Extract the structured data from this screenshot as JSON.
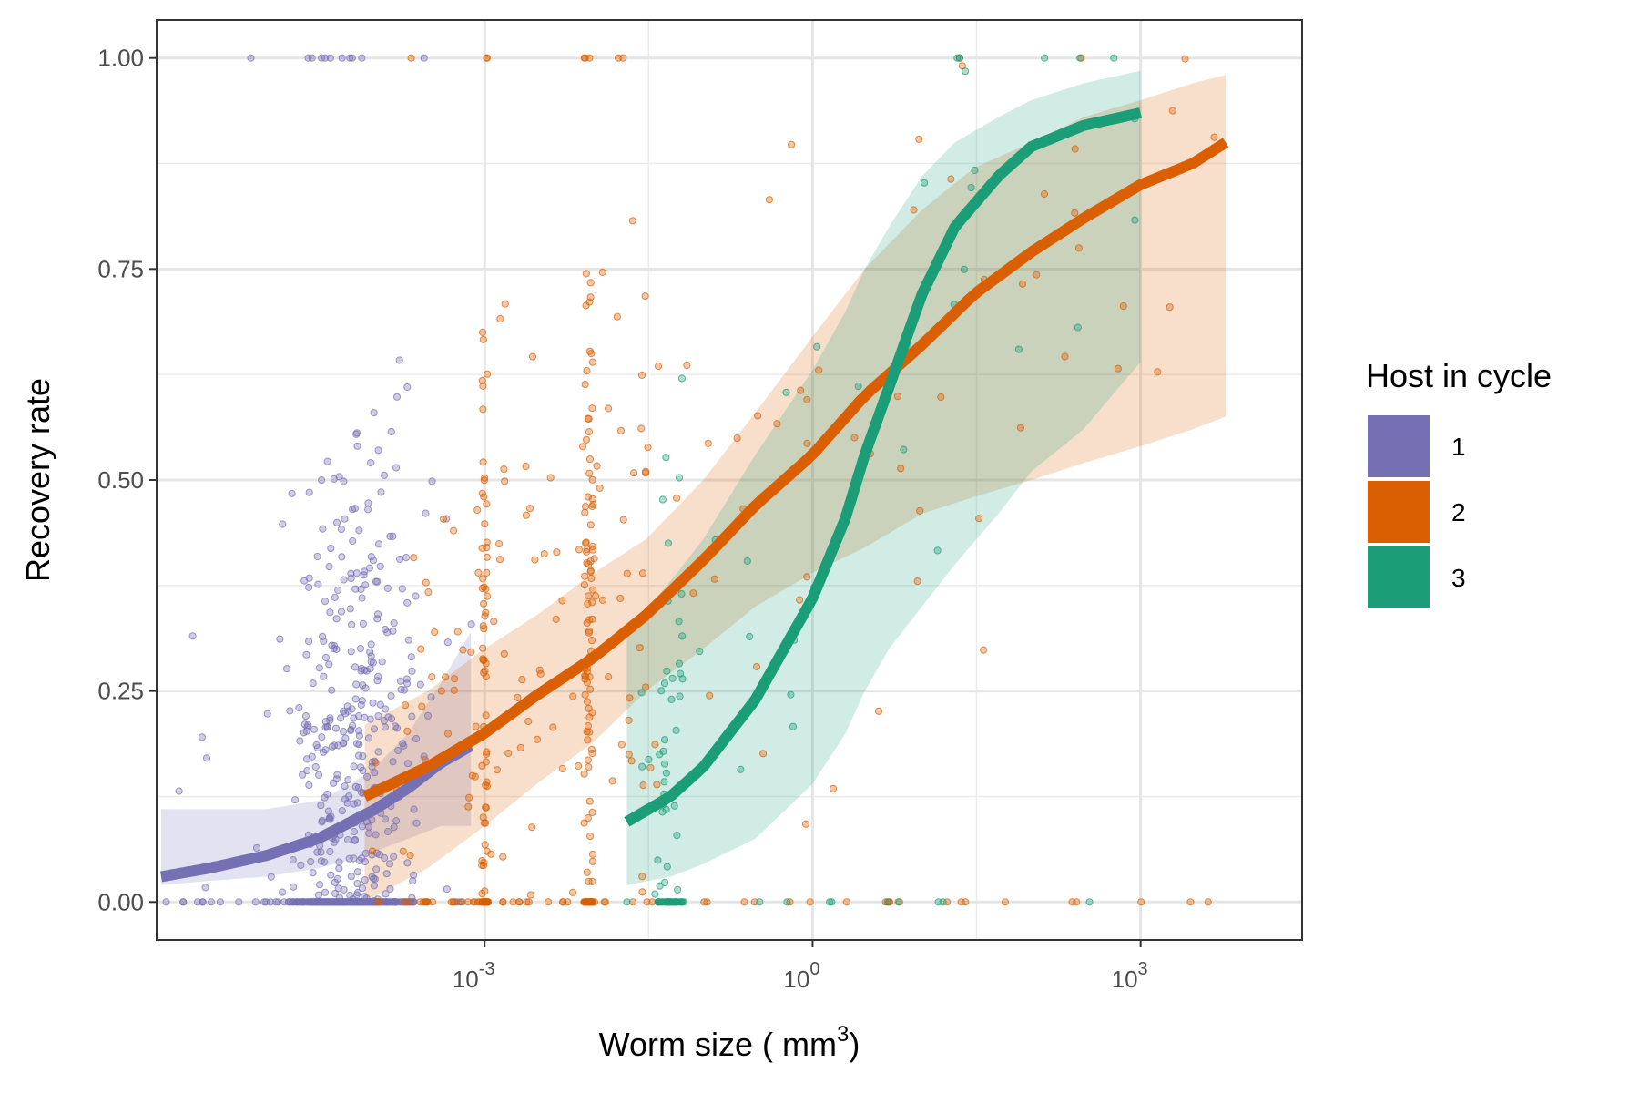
{
  "chart_data": {
    "type": "scatter",
    "xlabel": "Worm size ( mm",
    "xlabel_superscript": "3",
    "xlabel_close": ")",
    "ylabel": "Recovery rate",
    "x_scale": "log10",
    "xlim": [
      1e-06,
      30000
    ],
    "ylim": [
      -0.045,
      1.045
    ],
    "x_ticks": [
      {
        "value": 0.001,
        "base": "10",
        "exp": "-3"
      },
      {
        "value": 1,
        "base": "10",
        "exp": "0"
      },
      {
        "value": 1000,
        "base": "10",
        "exp": "3"
      }
    ],
    "y_ticks": [
      {
        "value": 0,
        "label": "0.00"
      },
      {
        "value": 0.25,
        "label": "0.25"
      },
      {
        "value": 0.5,
        "label": "0.50"
      },
      {
        "value": 0.75,
        "label": "0.75"
      },
      {
        "value": 1,
        "label": "1.00"
      }
    ],
    "grid": true,
    "legend": {
      "title": "Host in cycle",
      "position": "right",
      "entries": [
        {
          "label": "1",
          "color": "#7570b3"
        },
        {
          "label": "2",
          "color": "#d95f02"
        },
        {
          "label": "3",
          "color": "#1b9e77"
        }
      ]
    },
    "series": [
      {
        "label": "1",
        "color": "#7570b3",
        "fit": {
          "x": [
            1.1e-06,
            3e-06,
            1e-05,
            3e-05,
            6e-05,
            0.0001,
            0.0002,
            0.0004,
            0.00075
          ],
          "y": [
            0.03,
            0.04,
            0.055,
            0.075,
            0.095,
            0.11,
            0.135,
            0.165,
            0.185
          ]
        },
        "ribbon": {
          "x": [
            1.1e-06,
            3e-06,
            1e-05,
            3e-05,
            6e-05,
            0.0001,
            0.0002,
            0.0004,
            0.00075
          ],
          "lower": [
            0.02,
            0.025,
            0.03,
            0.04,
            0.05,
            0.06,
            0.075,
            0.09,
            0.09
          ],
          "upper": [
            0.11,
            0.11,
            0.11,
            0.12,
            0.14,
            0.16,
            0.2,
            0.26,
            0.32
          ]
        },
        "x_range": [
          1.2e-06,
          0.0008
        ],
        "n_points": 650,
        "point_summary": "dense cluster, x 1e-5 to 8e-4, y 0 to 1"
      },
      {
        "label": "2",
        "color": "#d95f02",
        "fit": {
          "x": [
            8e-05,
            0.0003,
            0.001,
            0.003,
            0.01,
            0.03,
            0.1,
            0.3,
            1,
            3,
            10,
            30,
            100,
            300,
            1000,
            3000,
            6000
          ],
          "y": [
            0.125,
            0.16,
            0.2,
            0.245,
            0.29,
            0.34,
            0.405,
            0.47,
            0.53,
            0.6,
            0.66,
            0.72,
            0.77,
            0.81,
            0.85,
            0.875,
            0.9
          ]
        },
        "ribbon": {
          "x": [
            8e-05,
            0.0003,
            0.001,
            0.003,
            0.01,
            0.03,
            0.1,
            0.3,
            1,
            3,
            10,
            30,
            100,
            300,
            1000,
            3000,
            6000
          ],
          "lower": [
            0.0,
            0.04,
            0.09,
            0.14,
            0.19,
            0.25,
            0.3,
            0.35,
            0.39,
            0.42,
            0.46,
            0.48,
            0.5,
            0.52,
            0.54,
            0.56,
            0.575
          ],
          "upper": [
            0.21,
            0.25,
            0.3,
            0.34,
            0.39,
            0.43,
            0.5,
            0.58,
            0.67,
            0.75,
            0.82,
            0.87,
            0.9,
            0.93,
            0.95,
            0.97,
            0.98
          ]
        },
        "x_range": [
          8e-05,
          6000
        ],
        "n_points": 450,
        "point_summary": "spread, x 1e-4 to 6e3, vertical stacks near 1e-3 and 1e-2"
      },
      {
        "label": "3",
        "color": "#1b9e77",
        "fit": {
          "x": [
            0.02,
            0.05,
            0.1,
            0.3,
            1,
            2,
            3,
            5,
            10,
            20,
            50,
            100,
            300,
            1000
          ],
          "y": [
            0.095,
            0.125,
            0.16,
            0.24,
            0.36,
            0.455,
            0.53,
            0.61,
            0.72,
            0.8,
            0.86,
            0.895,
            0.92,
            0.935
          ]
        },
        "ribbon": {
          "x": [
            0.02,
            0.05,
            0.1,
            0.3,
            1,
            2,
            3,
            5,
            10,
            20,
            50,
            100,
            300,
            1000
          ],
          "lower": [
            0.02,
            0.03,
            0.045,
            0.075,
            0.14,
            0.2,
            0.25,
            0.3,
            0.35,
            0.4,
            0.46,
            0.51,
            0.56,
            0.64
          ],
          "upper": [
            0.32,
            0.38,
            0.43,
            0.53,
            0.63,
            0.7,
            0.75,
            0.8,
            0.86,
            0.9,
            0.93,
            0.95,
            0.97,
            0.985
          ]
        },
        "x_range": [
          0.02,
          1000
        ],
        "n_points": 120,
        "point_summary": "sparse, x 0.02 to 1e3, cluster near 0.05"
      }
    ]
  }
}
